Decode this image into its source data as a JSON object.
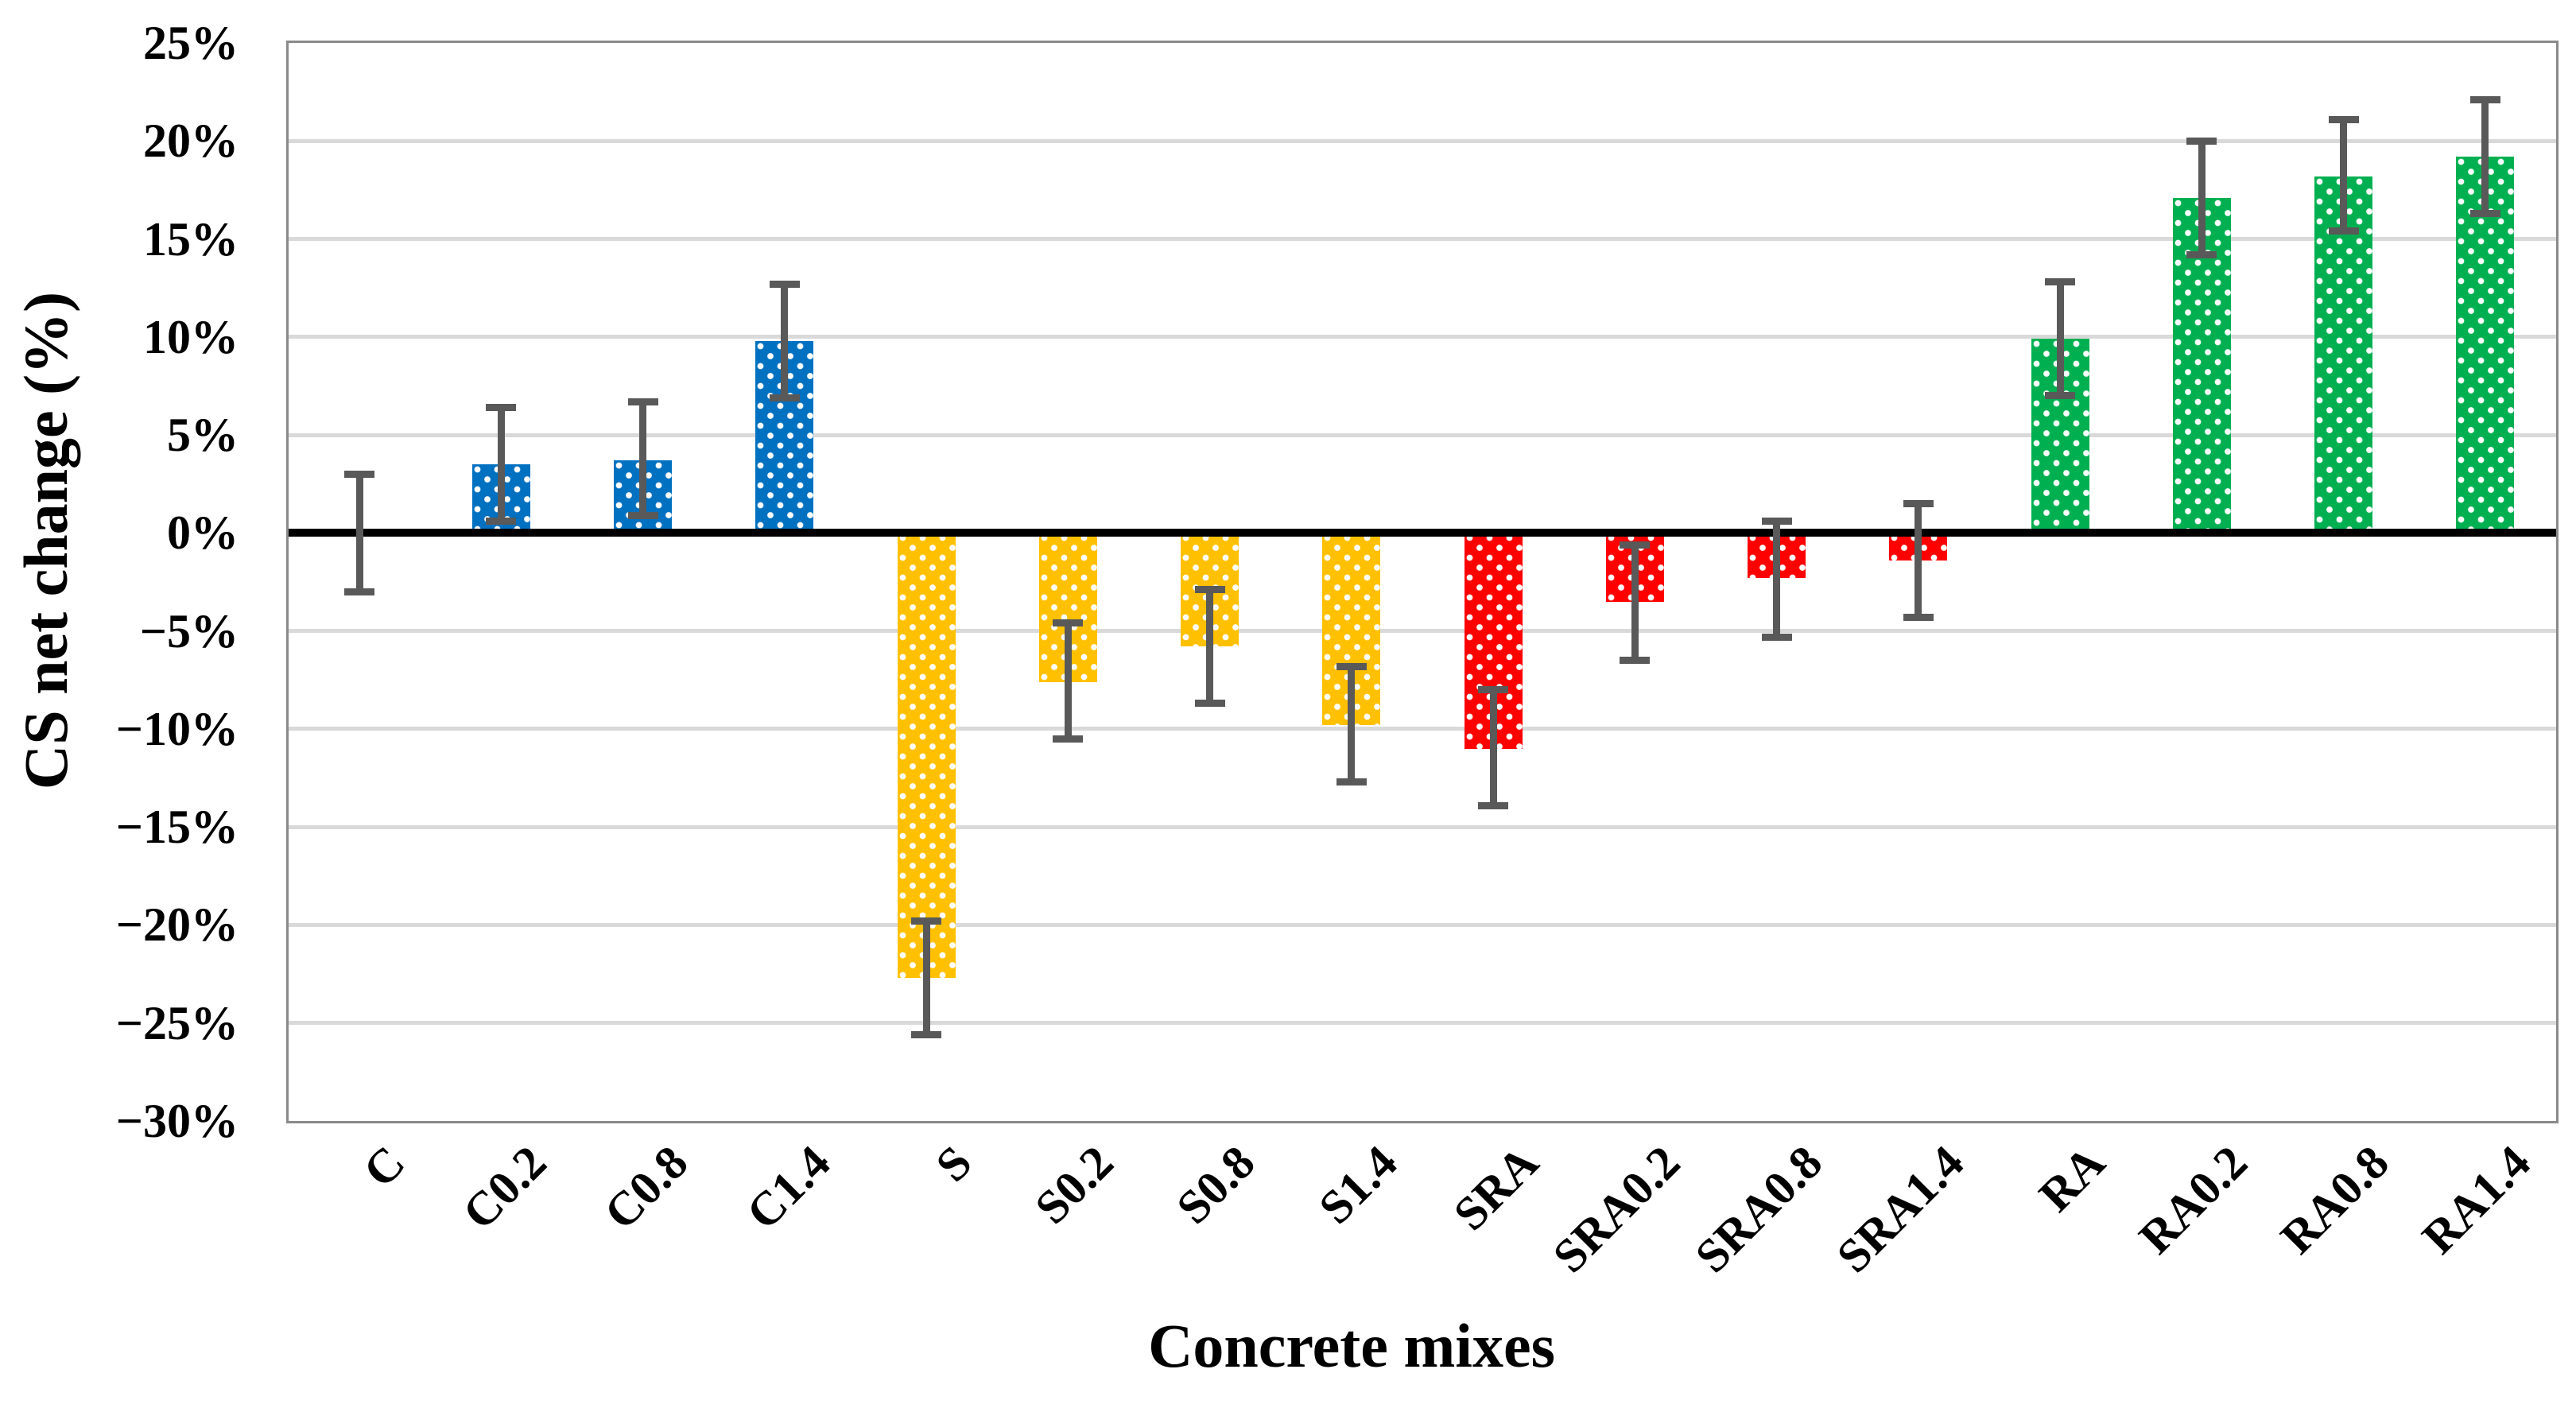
{
  "figure": {
    "y_axis_title": "CS net change (%)",
    "x_axis_title": "Concrete mixes"
  },
  "chart_data": {
    "type": "bar",
    "title": "",
    "xlabel": "Concrete mixes",
    "ylabel": "CS net change (%)",
    "ylim": [
      -30,
      25
    ],
    "ytick_step": 5,
    "ytick_labels": [
      "25%",
      "20%",
      "15%",
      "10%",
      "5%",
      "0%",
      "−5%",
      "−10%",
      "−15%",
      "−20%",
      "−25%",
      "−30%"
    ],
    "grid": true,
    "legend": "none",
    "bar_pattern": "white-dots",
    "categories": [
      "C",
      "C0.2",
      "C0.8",
      "C1.4",
      "S",
      "S0.2",
      "S0.8",
      "S1.4",
      "SRA",
      "SRA0.2",
      "SRA0.8",
      "SRA1.4",
      "RA",
      "RA0.2",
      "RA0.8",
      "RA1.4"
    ],
    "values": [
      0.0,
      3.5,
      3.7,
      9.8,
      -22.7,
      -7.6,
      -5.8,
      -9.8,
      -11.0,
      -3.5,
      -2.3,
      -1.4,
      9.9,
      17.1,
      18.2,
      19.2
    ],
    "error_high": [
      3.0,
      6.4,
      6.7,
      12.7,
      -19.8,
      -4.6,
      -2.9,
      -6.8,
      -8.0,
      -0.6,
      0.6,
      1.5,
      12.8,
      20.0,
      21.1,
      22.1
    ],
    "error_low": [
      -3.0,
      0.6,
      0.9,
      6.9,
      -25.6,
      -10.5,
      -8.7,
      -12.7,
      -13.9,
      -6.5,
      -5.3,
      -4.3,
      7.0,
      14.2,
      15.4,
      16.3
    ],
    "bar_colors": [
      "#0070C0",
      "#0070C0",
      "#0070C0",
      "#0070C0",
      "#FFC000",
      "#FFC000",
      "#FFC000",
      "#FFC000",
      "#FF0000",
      "#FF0000",
      "#FF0000",
      "#FF0000",
      "#00B050",
      "#00B050",
      "#00B050",
      "#00B050"
    ],
    "group_colors": {
      "C": "#0070C0",
      "S": "#FFC000",
      "SRA": "#FF0000",
      "RA": "#00B050"
    },
    "error_bar_color": "#595959",
    "gridline_color": "#D9D9D9",
    "zero_line_color": "#000000",
    "plot_border_color": "#8A8A8A"
  }
}
